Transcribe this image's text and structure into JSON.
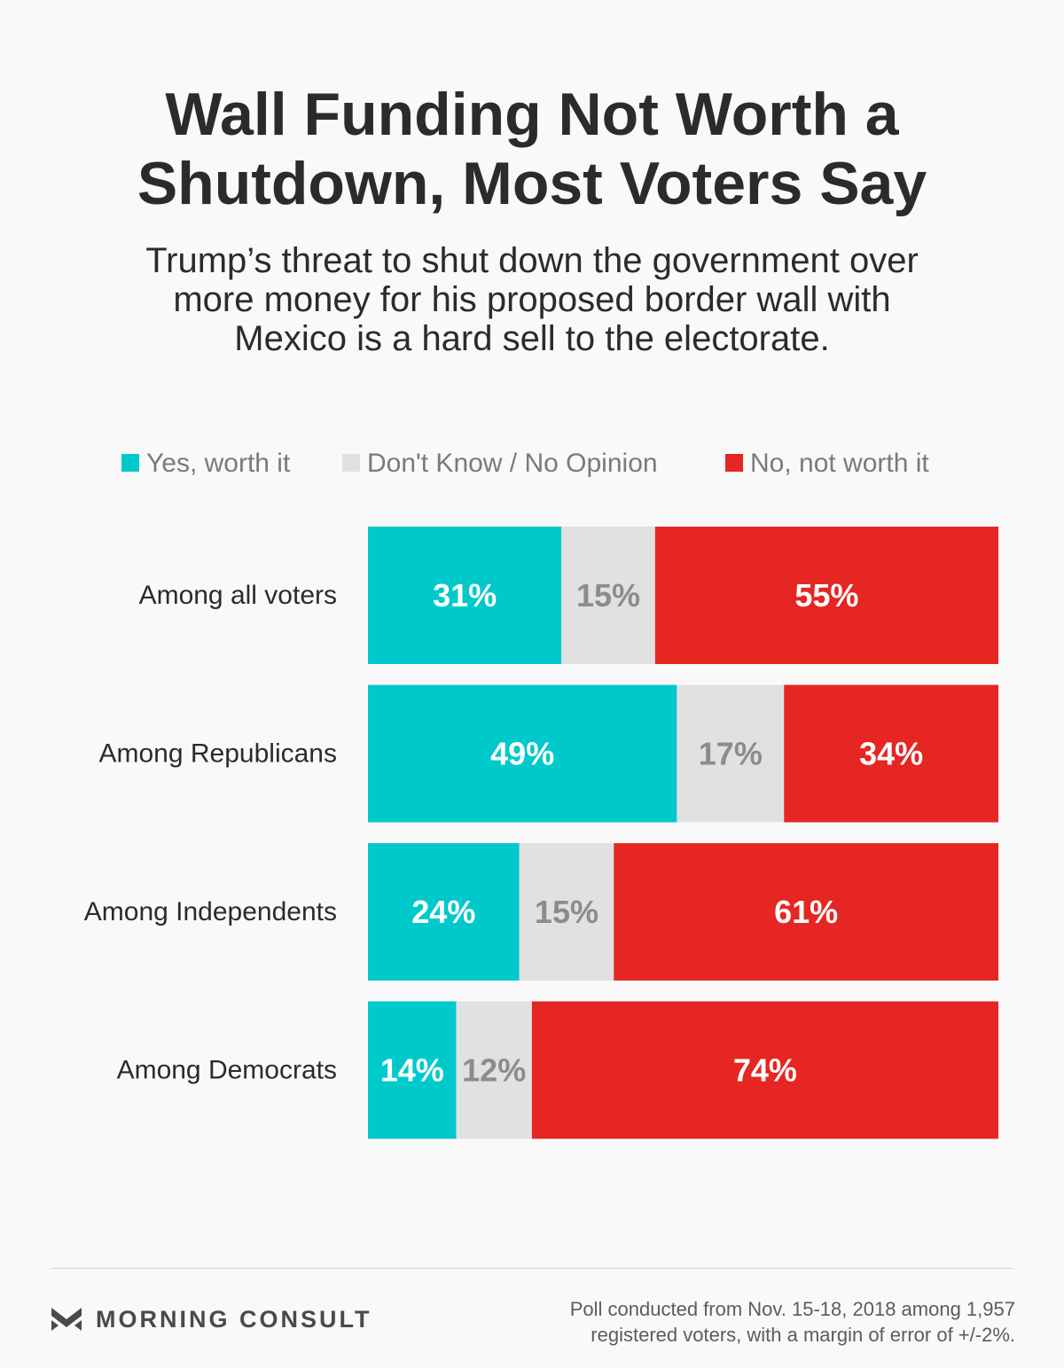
{
  "title_line1": "Wall Funding Not Worth a",
  "title_line2": "Shutdown, Most Voters Say",
  "subtitle_line1": "Trump’s threat to shut down the government over",
  "subtitle_line2": "more money for his proposed border wall with",
  "subtitle_line3": "Mexico is a hard sell to the electorate.",
  "legend": [
    {
      "label": "Yes, worth it",
      "color": "#00c9cc"
    },
    {
      "label": "Don't Know / No Opinion",
      "color": "#e1e1e1"
    },
    {
      "label": "No, not worth it",
      "color": "#e52622"
    }
  ],
  "chart_data": {
    "type": "bar",
    "orientation": "horizontal",
    "stacked": true,
    "title": "Wall Funding Not Worth a Shutdown, Most Voters Say",
    "xlabel": "",
    "ylabel": "",
    "xlim": [
      0,
      100
    ],
    "grid": false,
    "legend_position": "top",
    "categories": [
      "Among all voters",
      "Among Republicans",
      "Among Independents",
      "Among Democrats"
    ],
    "series": [
      {
        "name": "Yes, worth it",
        "color": "#00c9cc",
        "label_color": "#ffffff",
        "values": [
          31,
          49,
          24,
          14
        ]
      },
      {
        "name": "Don't Know / No Opinion",
        "color": "#e1e1e1",
        "label_color": "#8c8c8c",
        "values": [
          15,
          17,
          15,
          12
        ]
      },
      {
        "name": "No, not worth it",
        "color": "#e52622",
        "label_color": "#ffffff",
        "values": [
          55,
          34,
          61,
          74
        ]
      }
    ]
  },
  "footer": {
    "brand": "MORNING CONSULT",
    "source_line1": "Poll conducted from Nov. 15-18, 2018 among 1,957",
    "source_line2": "registered voters, with a margin of error of +/-2%."
  }
}
